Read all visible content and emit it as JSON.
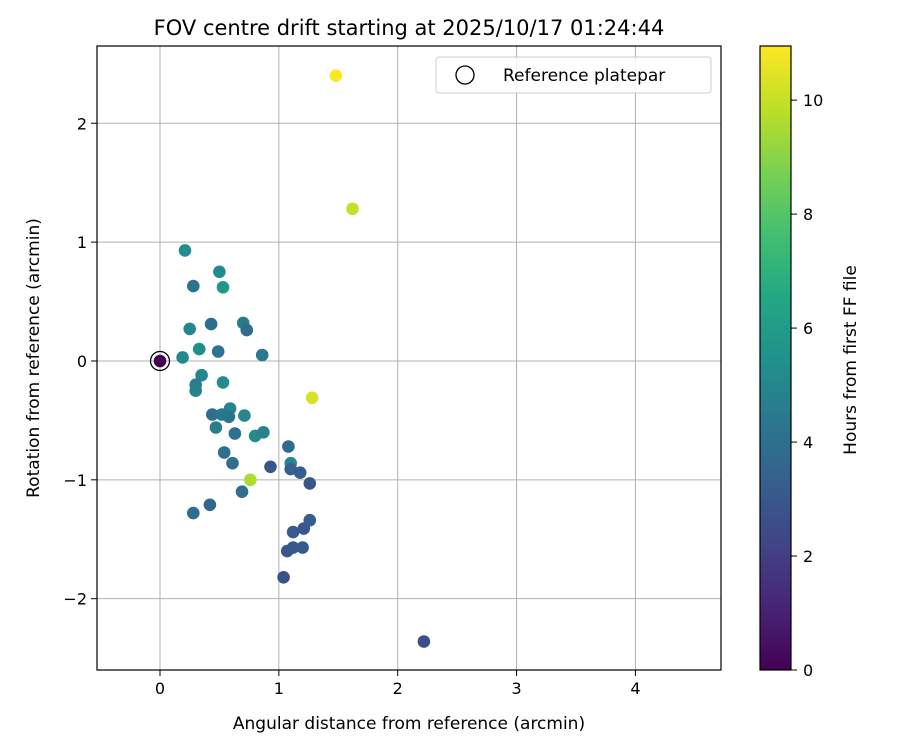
{
  "chart_data": {
    "type": "scatter",
    "title": "FOV centre drift starting at 2025/10/17 01:24:44",
    "xlabel": "Angular distance from reference (arcmin)",
    "ylabel": "Rotation from reference (arcmin)",
    "xlim": [
      -0.53,
      4.72
    ],
    "ylim": [
      -2.6,
      2.65
    ],
    "xticks": [
      0,
      1,
      2,
      3,
      4
    ],
    "yticks": [
      -2,
      -1,
      0,
      1,
      2
    ],
    "xtick_labels": [
      "0",
      "1",
      "2",
      "3",
      "4"
    ],
    "ytick_labels": [
      "−2",
      "−1",
      "0",
      "1",
      "2"
    ],
    "grid": true,
    "legend": {
      "position": "top-right",
      "label": "Reference platepar"
    },
    "colorbar": {
      "label": "Hours from first FF file",
      "colormap": "viridis",
      "range": [
        0,
        10.95
      ],
      "ticks": [
        0,
        2,
        4,
        6,
        8,
        10
      ],
      "tick_labels": [
        "0",
        "2",
        "4",
        "6",
        "8",
        "10"
      ]
    },
    "reference_point": {
      "x": 0.0,
      "y": 0.0
    },
    "points": [
      {
        "x": 0.0,
        "y": 0.0,
        "hours": 0.0
      },
      {
        "x": 1.48,
        "y": 2.4,
        "hours": 10.9
      },
      {
        "x": 1.62,
        "y": 1.28,
        "hours": 10.0
      },
      {
        "x": 1.28,
        "y": -0.31,
        "hours": 10.3
      },
      {
        "x": 0.76,
        "y": -1.0,
        "hours": 9.6
      },
      {
        "x": 0.21,
        "y": 0.93,
        "hours": 5.3
      },
      {
        "x": 0.28,
        "y": 0.63,
        "hours": 4.3
      },
      {
        "x": 0.5,
        "y": 0.75,
        "hours": 5.2
      },
      {
        "x": 0.53,
        "y": 0.62,
        "hours": 5.7
      },
      {
        "x": 0.25,
        "y": 0.27,
        "hours": 5.0
      },
      {
        "x": 0.43,
        "y": 0.31,
        "hours": 3.9
      },
      {
        "x": 0.7,
        "y": 0.32,
        "hours": 4.5
      },
      {
        "x": 0.73,
        "y": 0.26,
        "hours": 3.9
      },
      {
        "x": 0.33,
        "y": 0.1,
        "hours": 5.4
      },
      {
        "x": 0.49,
        "y": 0.08,
        "hours": 4.1
      },
      {
        "x": 0.86,
        "y": 0.05,
        "hours": 4.4
      },
      {
        "x": 0.19,
        "y": 0.03,
        "hours": 5.1
      },
      {
        "x": 0.35,
        "y": -0.12,
        "hours": 5.0
      },
      {
        "x": 0.3,
        "y": -0.2,
        "hours": 4.6
      },
      {
        "x": 0.53,
        "y": -0.18,
        "hours": 5.3
      },
      {
        "x": 0.3,
        "y": -0.25,
        "hours": 4.8
      },
      {
        "x": 0.59,
        "y": -0.4,
        "hours": 5.0
      },
      {
        "x": 0.44,
        "y": -0.45,
        "hours": 4.0
      },
      {
        "x": 0.52,
        "y": -0.45,
        "hours": 4.4
      },
      {
        "x": 0.58,
        "y": -0.47,
        "hours": 4.2
      },
      {
        "x": 0.71,
        "y": -0.46,
        "hours": 5.0
      },
      {
        "x": 0.47,
        "y": -0.56,
        "hours": 4.6
      },
      {
        "x": 0.63,
        "y": -0.61,
        "hours": 4.1
      },
      {
        "x": 0.8,
        "y": -0.63,
        "hours": 5.2
      },
      {
        "x": 0.87,
        "y": -0.6,
        "hours": 4.8
      },
      {
        "x": 0.54,
        "y": -0.77,
        "hours": 4.0
      },
      {
        "x": 0.61,
        "y": -0.86,
        "hours": 4.0
      },
      {
        "x": 0.93,
        "y": -0.89,
        "hours": 2.9
      },
      {
        "x": 1.08,
        "y": -0.72,
        "hours": 3.8
      },
      {
        "x": 1.1,
        "y": -0.86,
        "hours": 5.1
      },
      {
        "x": 1.1,
        "y": -0.91,
        "hours": 3.4
      },
      {
        "x": 1.18,
        "y": -0.94,
        "hours": 3.2
      },
      {
        "x": 1.26,
        "y": -1.03,
        "hours": 2.9
      },
      {
        "x": 0.69,
        "y": -1.1,
        "hours": 4.0
      },
      {
        "x": 0.42,
        "y": -1.21,
        "hours": 3.7
      },
      {
        "x": 0.28,
        "y": -1.28,
        "hours": 3.9
      },
      {
        "x": 1.26,
        "y": -1.34,
        "hours": 3.2
      },
      {
        "x": 1.21,
        "y": -1.41,
        "hours": 3.0
      },
      {
        "x": 1.12,
        "y": -1.44,
        "hours": 3.2
      },
      {
        "x": 1.12,
        "y": -1.57,
        "hours": 3.0
      },
      {
        "x": 1.2,
        "y": -1.57,
        "hours": 3.1
      },
      {
        "x": 1.07,
        "y": -1.6,
        "hours": 3.0
      },
      {
        "x": 1.04,
        "y": -1.82,
        "hours": 2.8
      },
      {
        "x": 2.22,
        "y": -2.36,
        "hours": 2.6
      }
    ]
  }
}
